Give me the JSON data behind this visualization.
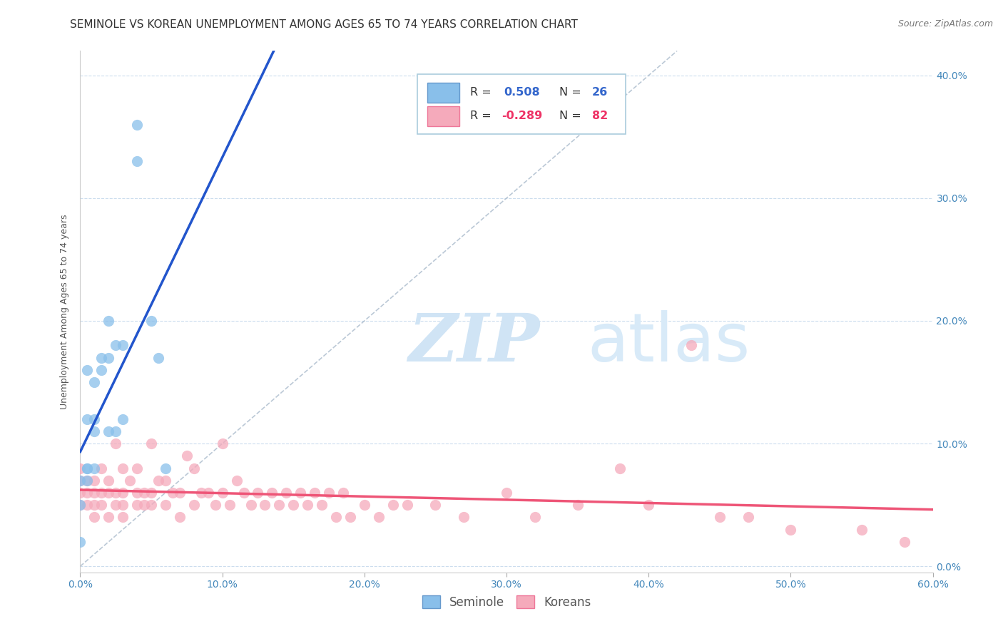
{
  "title": "SEMINOLE VS KOREAN UNEMPLOYMENT AMONG AGES 65 TO 74 YEARS CORRELATION CHART",
  "source": "Source: ZipAtlas.com",
  "ylabel": "Unemployment Among Ages 65 to 74 years",
  "xlim": [
    0.0,
    0.6
  ],
  "ylim": [
    -0.005,
    0.42
  ],
  "xticks": [
    0.0,
    0.1,
    0.2,
    0.3,
    0.4,
    0.5,
    0.6
  ],
  "yticks": [
    0.0,
    0.1,
    0.2,
    0.3,
    0.4
  ],
  "seminole_color": "#89BFEA",
  "korean_color": "#F5AABB",
  "trendline_seminole_color": "#2255CC",
  "trendline_korean_color": "#EE5577",
  "diagonal_color": "#AABBCC",
  "background_color": "#FFFFFF",
  "seminole_x": [
    0.0,
    0.0,
    0.0,
    0.005,
    0.005,
    0.005,
    0.005,
    0.005,
    0.01,
    0.01,
    0.01,
    0.01,
    0.015,
    0.015,
    0.02,
    0.02,
    0.02,
    0.025,
    0.025,
    0.03,
    0.03,
    0.04,
    0.04,
    0.05,
    0.055,
    0.06
  ],
  "seminole_y": [
    0.02,
    0.05,
    0.07,
    0.07,
    0.08,
    0.08,
    0.12,
    0.16,
    0.08,
    0.11,
    0.12,
    0.15,
    0.16,
    0.17,
    0.11,
    0.17,
    0.2,
    0.11,
    0.18,
    0.12,
    0.18,
    0.33,
    0.36,
    0.2,
    0.17,
    0.08
  ],
  "korean_x": [
    0.0,
    0.0,
    0.0,
    0.0,
    0.005,
    0.005,
    0.005,
    0.01,
    0.01,
    0.01,
    0.01,
    0.015,
    0.015,
    0.015,
    0.02,
    0.02,
    0.02,
    0.025,
    0.025,
    0.025,
    0.03,
    0.03,
    0.03,
    0.03,
    0.035,
    0.04,
    0.04,
    0.04,
    0.045,
    0.045,
    0.05,
    0.05,
    0.05,
    0.055,
    0.06,
    0.06,
    0.065,
    0.07,
    0.07,
    0.075,
    0.08,
    0.08,
    0.085,
    0.09,
    0.095,
    0.1,
    0.1,
    0.105,
    0.11,
    0.115,
    0.12,
    0.125,
    0.13,
    0.135,
    0.14,
    0.145,
    0.15,
    0.155,
    0.16,
    0.165,
    0.17,
    0.175,
    0.18,
    0.185,
    0.19,
    0.2,
    0.21,
    0.22,
    0.23,
    0.25,
    0.27,
    0.3,
    0.32,
    0.35,
    0.38,
    0.4,
    0.43,
    0.45,
    0.47,
    0.5,
    0.55,
    0.58
  ],
  "korean_y": [
    0.05,
    0.06,
    0.07,
    0.08,
    0.05,
    0.06,
    0.07,
    0.04,
    0.05,
    0.06,
    0.07,
    0.05,
    0.06,
    0.08,
    0.04,
    0.06,
    0.07,
    0.05,
    0.06,
    0.1,
    0.04,
    0.05,
    0.06,
    0.08,
    0.07,
    0.05,
    0.06,
    0.08,
    0.05,
    0.06,
    0.05,
    0.06,
    0.1,
    0.07,
    0.05,
    0.07,
    0.06,
    0.04,
    0.06,
    0.09,
    0.05,
    0.08,
    0.06,
    0.06,
    0.05,
    0.06,
    0.1,
    0.05,
    0.07,
    0.06,
    0.05,
    0.06,
    0.05,
    0.06,
    0.05,
    0.06,
    0.05,
    0.06,
    0.05,
    0.06,
    0.05,
    0.06,
    0.04,
    0.06,
    0.04,
    0.05,
    0.04,
    0.05,
    0.05,
    0.05,
    0.04,
    0.06,
    0.04,
    0.05,
    0.08,
    0.05,
    0.18,
    0.04,
    0.04,
    0.03,
    0.03,
    0.02
  ],
  "title_fontsize": 11,
  "axis_label_fontsize": 9,
  "tick_fontsize": 10,
  "legend_fontsize": 11,
  "source_fontsize": 9
}
